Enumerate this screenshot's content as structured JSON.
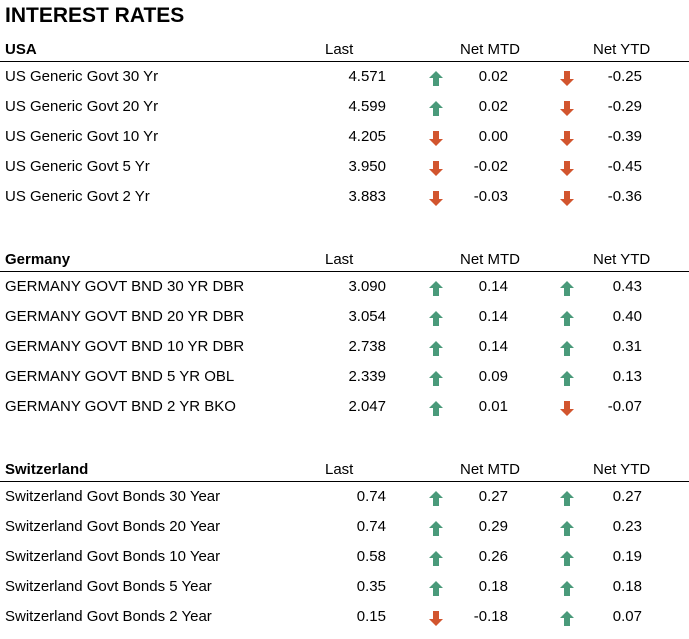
{
  "title": "INTEREST RATES",
  "colors": {
    "up": "#4a9a7a",
    "down": "#d2552e"
  },
  "sections": [
    {
      "name": "USA",
      "headers": {
        "last": "Last",
        "mtd": "Net MTD",
        "ytd": "Net YTD"
      },
      "rows": [
        {
          "name": "US Generic Govt 30 Yr",
          "last": "4.571",
          "mtd_dir": "up",
          "mtd": "0.02",
          "ytd_dir": "down",
          "ytd": "-0.25"
        },
        {
          "name": "US Generic Govt 20 Yr",
          "last": "4.599",
          "mtd_dir": "up",
          "mtd": "0.02",
          "ytd_dir": "down",
          "ytd": "-0.29"
        },
        {
          "name": "US Generic Govt 10 Yr",
          "last": "4.205",
          "mtd_dir": "down",
          "mtd": "0.00",
          "ytd_dir": "down",
          "ytd": "-0.39"
        },
        {
          "name": "US Generic Govt 5 Yr",
          "last": "3.950",
          "mtd_dir": "down",
          "mtd": "-0.02",
          "ytd_dir": "down",
          "ytd": "-0.45"
        },
        {
          "name": "US Generic Govt 2 Yr",
          "last": "3.883",
          "mtd_dir": "down",
          "mtd": "-0.03",
          "ytd_dir": "down",
          "ytd": "-0.36"
        }
      ]
    },
    {
      "name": "Germany",
      "headers": {
        "last": "Last",
        "mtd": "Net MTD",
        "ytd": "Net YTD"
      },
      "rows": [
        {
          "name": "GERMANY GOVT BND 30 YR DBR",
          "last": "3.090",
          "mtd_dir": "up",
          "mtd": "0.14",
          "ytd_dir": "up",
          "ytd": "0.43"
        },
        {
          "name": "GERMANY GOVT BND 20 YR DBR",
          "last": "3.054",
          "mtd_dir": "up",
          "mtd": "0.14",
          "ytd_dir": "up",
          "ytd": "0.40"
        },
        {
          "name": "GERMANY GOVT BND 10 YR DBR",
          "last": "2.738",
          "mtd_dir": "up",
          "mtd": "0.14",
          "ytd_dir": "up",
          "ytd": "0.31"
        },
        {
          "name": "GERMANY GOVT BND 5 YR OBL",
          "last": "2.339",
          "mtd_dir": "up",
          "mtd": "0.09",
          "ytd_dir": "up",
          "ytd": "0.13"
        },
        {
          "name": "GERMANY GOVT BND 2 YR BKO",
          "last": "2.047",
          "mtd_dir": "up",
          "mtd": "0.01",
          "ytd_dir": "down",
          "ytd": "-0.07"
        }
      ]
    },
    {
      "name": "Switzerland",
      "headers": {
        "last": "Last",
        "mtd": "Net MTD",
        "ytd": "Net YTD"
      },
      "rows": [
        {
          "name": "Switzerland Govt Bonds 30 Year",
          "last": "0.74",
          "mtd_dir": "up",
          "mtd": "0.27",
          "ytd_dir": "up",
          "ytd": "0.27"
        },
        {
          "name": "Switzerland Govt Bonds 20 Year",
          "last": "0.74",
          "mtd_dir": "up",
          "mtd": "0.29",
          "ytd_dir": "up",
          "ytd": "0.23"
        },
        {
          "name": "Switzerland Govt Bonds 10 Year",
          "last": "0.58",
          "mtd_dir": "up",
          "mtd": "0.26",
          "ytd_dir": "up",
          "ytd": "0.19"
        },
        {
          "name": "Switzerland Govt Bonds 5 Year",
          "last": "0.35",
          "mtd_dir": "up",
          "mtd": "0.18",
          "ytd_dir": "up",
          "ytd": "0.18"
        },
        {
          "name": "Switzerland Govt Bonds 2 Year",
          "last": "0.15",
          "mtd_dir": "down",
          "mtd": "-0.18",
          "ytd_dir": "up",
          "ytd": "0.07"
        }
      ]
    }
  ]
}
